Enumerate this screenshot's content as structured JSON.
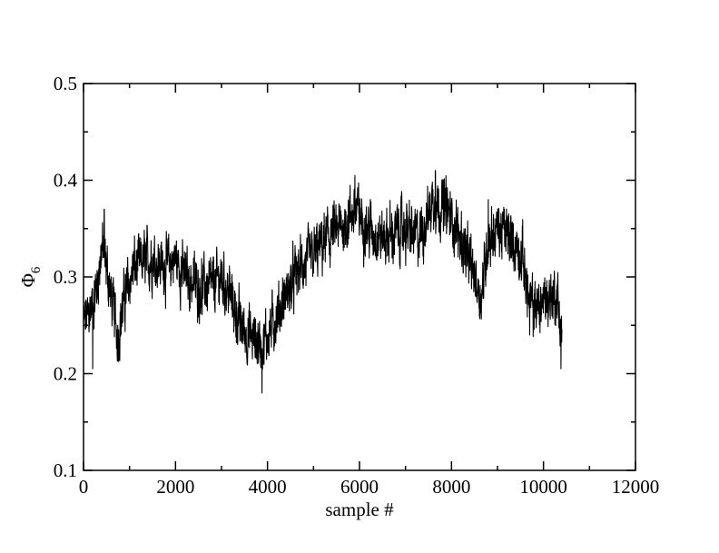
{
  "chart_data": {
    "type": "line",
    "title": "",
    "xlabel": "sample #",
    "ylabel": {
      "symbol": "Φ",
      "subscript": "6"
    },
    "xlim": [
      0,
      12000
    ],
    "ylim": [
      0.1,
      0.5
    ],
    "x_ticks": [
      0,
      2000,
      4000,
      6000,
      8000,
      10000,
      12000
    ],
    "x_tick_labels": [
      "0",
      "2000",
      "4000",
      "6000",
      "8000",
      "10000",
      "12000"
    ],
    "y_ticks": [
      0.1,
      0.2,
      0.3,
      0.4,
      0.5
    ],
    "y_tick_labels": [
      "0.1",
      "0.2",
      "0.3",
      "0.4",
      "0.5"
    ],
    "grid": false,
    "legend": "none",
    "line_color": "#000000",
    "series": [
      {
        "n_points": 10400,
        "trend": [
          [
            0,
            0.25
          ],
          [
            100,
            0.26
          ],
          [
            250,
            0.28
          ],
          [
            400,
            0.33
          ],
          [
            500,
            0.31
          ],
          [
            600,
            0.28
          ],
          [
            750,
            0.24
          ],
          [
            900,
            0.28
          ],
          [
            1100,
            0.31
          ],
          [
            1500,
            0.32
          ],
          [
            1800,
            0.31
          ],
          [
            2000,
            0.32
          ],
          [
            2200,
            0.3
          ],
          [
            2500,
            0.29
          ],
          [
            2800,
            0.29
          ],
          [
            3000,
            0.3
          ],
          [
            3200,
            0.28
          ],
          [
            3400,
            0.25
          ],
          [
            3600,
            0.24
          ],
          [
            3900,
            0.23
          ],
          [
            4100,
            0.25
          ],
          [
            4400,
            0.28
          ],
          [
            4700,
            0.31
          ],
          [
            5000,
            0.32
          ],
          [
            5300,
            0.34
          ],
          [
            5600,
            0.35
          ],
          [
            5900,
            0.37
          ],
          [
            6200,
            0.35
          ],
          [
            6500,
            0.34
          ],
          [
            7000,
            0.35
          ],
          [
            7300,
            0.34
          ],
          [
            7450,
            0.36
          ],
          [
            7600,
            0.38
          ],
          [
            7900,
            0.37
          ],
          [
            8200,
            0.34
          ],
          [
            8500,
            0.3
          ],
          [
            8650,
            0.28
          ],
          [
            8800,
            0.34
          ],
          [
            9000,
            0.35
          ],
          [
            9300,
            0.34
          ],
          [
            9550,
            0.32
          ],
          [
            9700,
            0.27
          ],
          [
            9900,
            0.27
          ],
          [
            10100,
            0.28
          ],
          [
            10300,
            0.28
          ],
          [
            10400,
            0.24
          ]
        ],
        "noise_amplitude": 0.018,
        "spikes": [
          [
            450,
            0.37
          ],
          [
            200,
            0.205
          ],
          [
            3880,
            0.18
          ],
          [
            5900,
            0.405
          ],
          [
            7650,
            0.41
          ],
          [
            8800,
            0.38
          ],
          [
            9700,
            0.24
          ],
          [
            10380,
            0.205
          ]
        ]
      }
    ]
  }
}
